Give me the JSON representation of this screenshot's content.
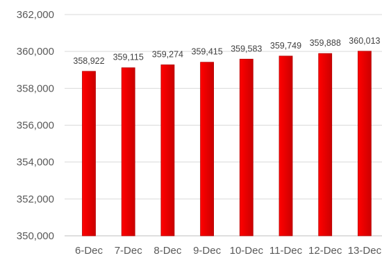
{
  "chart_data": {
    "type": "bar",
    "title": "",
    "xlabel": "",
    "ylabel": "",
    "categories": [
      "6-Dec",
      "7-Dec",
      "8-Dec",
      "9-Dec",
      "10-Dec",
      "11-Dec",
      "12-Dec",
      "13-Dec"
    ],
    "values": [
      358922,
      359115,
      359274,
      359415,
      359583,
      359749,
      359888,
      360013
    ],
    "data_labels": [
      "358,922",
      "359,115",
      "359,274",
      "359,415",
      "359,583",
      "359,749",
      "359,888",
      "360,013"
    ],
    "ylim": [
      350000,
      362000
    ],
    "yticks": [
      350000,
      352000,
      354000,
      356000,
      358000,
      360000,
      362000
    ],
    "ytick_labels": [
      "350,000",
      "352,000",
      "354,000",
      "356,000",
      "358,000",
      "360,000",
      "362,000"
    ],
    "grid": true,
    "legend": "none",
    "bar_color": "#ff0000",
    "bar_gradient_end": "#cc0000"
  }
}
